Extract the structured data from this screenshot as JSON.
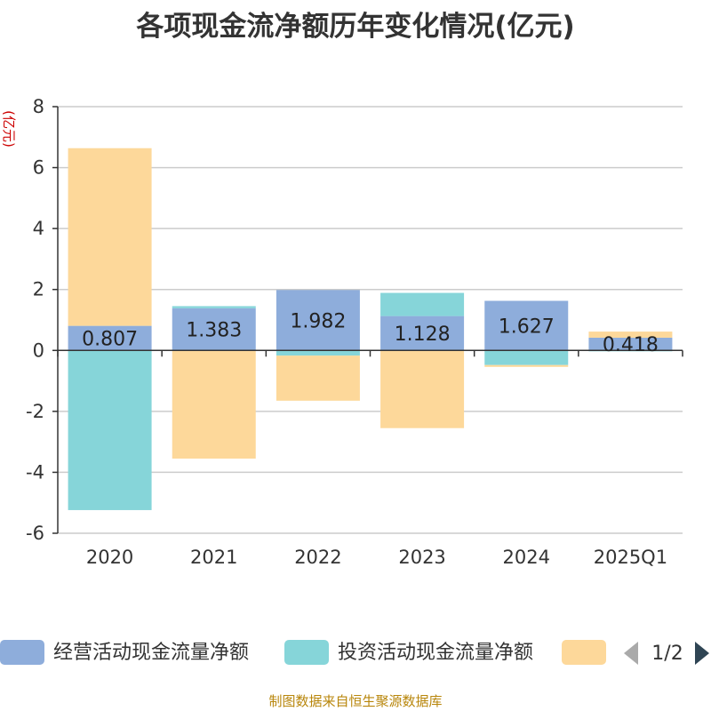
{
  "chart_data": {
    "type": "bar",
    "stacked": true,
    "title": "各项现金流净额历年变化情况(亿元)",
    "ylabel": "(亿元)",
    "xlabel": "",
    "ylim": [
      -6,
      8
    ],
    "yticks": [
      -6,
      -4,
      -2,
      0,
      2,
      4,
      6,
      8
    ],
    "categories": [
      "2020",
      "2021",
      "2022",
      "2023",
      "2024",
      "2025Q1"
    ],
    "series": [
      {
        "name": "经营活动现金流量净额",
        "color": "#8eaddb",
        "values": [
          0.807,
          1.383,
          1.982,
          1.128,
          1.627,
          0.418
        ]
      },
      {
        "name": "投资活动现金流量净额",
        "color": "#86d5d9",
        "values": [
          -5.24,
          0.07,
          -0.17,
          0.76,
          -0.48,
          -0.03
        ]
      },
      {
        "name": "",
        "color": "#fdd89a",
        "values": [
          5.83,
          -3.55,
          -1.48,
          -2.55,
          -0.06,
          0.2
        ]
      }
    ],
    "data_labels": [
      "0.807",
      "1.383",
      "1.982",
      "1.128",
      "1.627",
      "0.418"
    ],
    "grid": true,
    "legend": "bottom"
  },
  "legend": {
    "items": [
      {
        "label": "经营活动现金流量净额",
        "color": "#8eaddb"
      },
      {
        "label": "投资活动现金流量净额",
        "color": "#86d5d9"
      },
      {
        "label": "",
        "color": "#fdd89a"
      }
    ],
    "page": "1/2"
  },
  "footer": "制图数据来自恒生聚源数据库"
}
